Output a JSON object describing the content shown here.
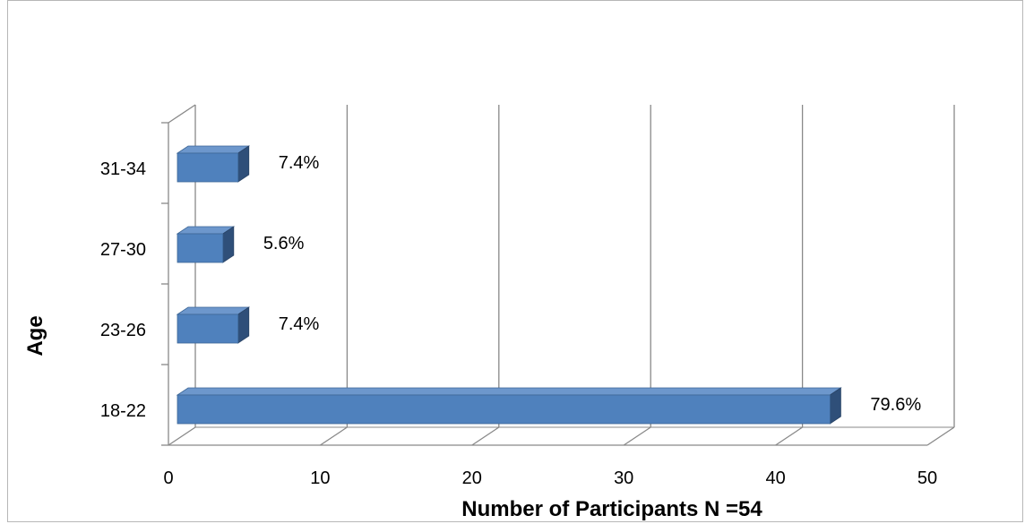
{
  "chart_data": {
    "type": "bar",
    "orientation": "horizontal",
    "style": "3d",
    "categories": [
      "18-22",
      "23-26",
      "27-30",
      "31-34"
    ],
    "values": [
      43,
      4,
      3,
      4
    ],
    "data_labels": [
      "79.6%",
      "7.4%",
      "5.6%",
      "7.4%"
    ],
    "xlabel": "Number of Participants N =54",
    "ylabel": "Age",
    "xlim": [
      0,
      50
    ],
    "xticks": [
      "0",
      "10",
      "20",
      "30",
      "40",
      "50"
    ],
    "grid": true,
    "colors": {
      "bar_front": "#4f81bd",
      "bar_top": "#6d97cc",
      "bar_side": "#2f4f79",
      "gridline": "#898989",
      "frame_border": "#b7b7b7"
    }
  }
}
